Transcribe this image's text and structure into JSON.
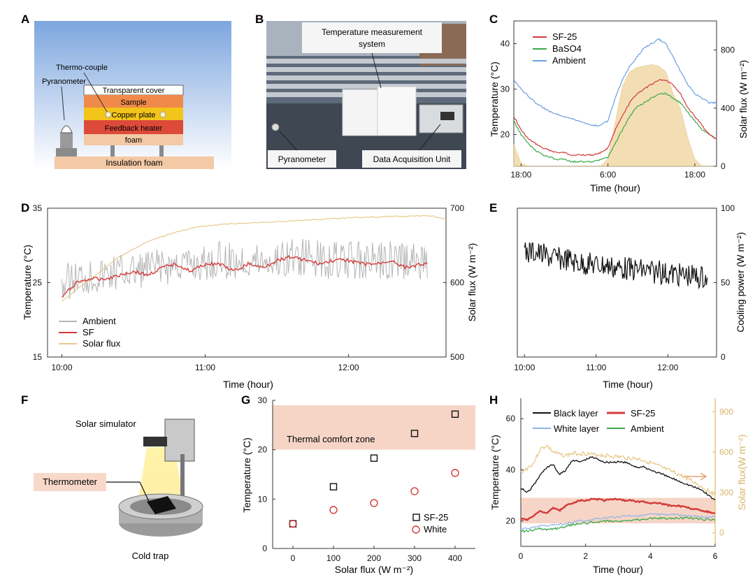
{
  "colors": {
    "sf": "#d43a3a",
    "baso4": "#3aa84a",
    "ambient": "#6b9fe0",
    "ambient_d": "#b5b5b5",
    "solar": "#e8c98a",
    "solar_fill": "#f2d9a8",
    "comfort": "#f6d5c7",
    "black": "#111111",
    "white_layer": "#8ab4e8"
  },
  "panels": {
    "A": {
      "letter": "A",
      "labels": {
        "thermocouple": "Thermo-couple",
        "pyranometer": "Pyranometer",
        "transparent_cover": "Transparent cover",
        "sample": "Sample",
        "copper_plate": "Copper plate",
        "feedback_heater": "Feedback heater",
        "foam": "foam",
        "insulation_foam": "Insulation foam"
      }
    },
    "B": {
      "letter": "B",
      "labels": {
        "temp_system_1": "Temperature measurement",
        "temp_system_2": "system",
        "pyranometer": "Pyranometer",
        "daq": "Data Acquisition Unit"
      }
    },
    "F": {
      "letter": "F",
      "labels": {
        "solar_simulator": "Solar simulator",
        "thermometer": "Thermometer",
        "cold_trap": "Cold trap"
      }
    }
  },
  "chart_data": [
    {
      "id": "C",
      "type": "line",
      "letter": "C",
      "xlabel": "Time (hour)",
      "ylabel": "Temperature (°C)",
      "y2label": "Solar flux (W m⁻²)",
      "xticks": [
        "18:00",
        "6:00",
        "18:00"
      ],
      "xtick_values": [
        0,
        12,
        24
      ],
      "xlim": [
        -1,
        27
      ],
      "ylim": [
        13,
        45
      ],
      "yticks": [
        20,
        30,
        40
      ],
      "y2lim": [
        0,
        1000
      ],
      "y2ticks": [
        0,
        400,
        800
      ],
      "legend": [
        "SF-25",
        "BaSO4",
        "Ambient"
      ],
      "series": [
        {
          "name": "SF-25",
          "x": [
            -1,
            0,
            1,
            2,
            3,
            4,
            5,
            6,
            7,
            8,
            9,
            10,
            11,
            12,
            13,
            14,
            15,
            16,
            17,
            18,
            19,
            20,
            21,
            22,
            23,
            24,
            25,
            26,
            27
          ],
          "values": [
            24,
            21,
            19,
            18,
            17,
            16.5,
            16,
            16,
            15.5,
            15.5,
            15.5,
            15.5,
            16,
            17,
            21,
            24,
            27,
            29,
            30,
            31,
            32,
            32,
            31,
            29,
            26,
            24,
            22,
            20,
            19
          ]
        },
        {
          "name": "BaSO4",
          "x": [
            -1,
            0,
            1,
            2,
            3,
            4,
            5,
            6,
            7,
            8,
            9,
            10,
            11,
            12,
            13,
            14,
            15,
            16,
            17,
            18,
            19,
            20,
            21,
            22,
            23,
            24,
            25,
            26,
            27
          ],
          "values": [
            23,
            20,
            18,
            16.5,
            15.5,
            15,
            14.5,
            14.5,
            14,
            14,
            14,
            14,
            14.5,
            15,
            18,
            21,
            24,
            26,
            27,
            28,
            29,
            29,
            28,
            27,
            25,
            23,
            21,
            20,
            19
          ]
        },
        {
          "name": "Ambient",
          "x": [
            -1,
            0,
            1,
            2,
            3,
            4,
            5,
            6,
            7,
            8,
            9,
            10,
            11,
            12,
            13,
            14,
            15,
            16,
            17,
            18,
            19,
            20,
            21,
            22,
            23,
            24,
            25,
            26,
            27
          ],
          "values": [
            32,
            30,
            28.5,
            27,
            26,
            25,
            24.5,
            24,
            23.5,
            23,
            22.5,
            22,
            22,
            23,
            28,
            32,
            35,
            37,
            39,
            40,
            41,
            40,
            37,
            34,
            31,
            29,
            28,
            27,
            27
          ]
        },
        {
          "name": "Solar flux",
          "x": [
            -1,
            0,
            1,
            2,
            3,
            4,
            5,
            6,
            7,
            8,
            9,
            10,
            11,
            12,
            13,
            14,
            15,
            16,
            17,
            18,
            19,
            20,
            21,
            22,
            23,
            24,
            25,
            26,
            27
          ],
          "values": [
            150,
            20,
            0,
            0,
            0,
            0,
            0,
            0,
            0,
            0,
            0,
            0,
            0,
            50,
            300,
            550,
            650,
            680,
            690,
            700,
            690,
            650,
            500,
            400,
            200,
            50,
            0,
            0,
            0
          ]
        }
      ]
    },
    {
      "id": "D",
      "type": "line",
      "letter": "D",
      "xlabel": "Time (hour)",
      "ylabel": "Temperature (°C)",
      "y2label": "Solar flux (W m⁻²)",
      "xticks": [
        "10:00",
        "11:00",
        "12:00"
      ],
      "xtick_values": [
        0,
        1,
        2
      ],
      "xlim": [
        -0.1,
        2.68
      ],
      "ylim": [
        15,
        35
      ],
      "yticks": [
        15,
        25,
        35
      ],
      "y2lim": [
        500,
        700
      ],
      "y2ticks": [
        500,
        600,
        700
      ],
      "legend": [
        "Ambient",
        "SF",
        "Solar flux"
      ],
      "series": [
        {
          "name": "Ambient",
          "x": [
            0,
            0.1,
            0.2,
            0.3,
            0.4,
            0.5,
            0.6,
            0.7,
            0.8,
            0.9,
            1.0,
            1.1,
            1.2,
            1.3,
            1.4,
            1.5,
            1.6,
            1.7,
            1.8,
            1.9,
            2.0,
            2.1,
            2.2,
            2.3,
            2.4,
            2.5,
            2.55
          ],
          "values": [
            25,
            25.5,
            26,
            26,
            26.5,
            26.5,
            27,
            27,
            27.5,
            27.5,
            27.5,
            28,
            28,
            28,
            28,
            28,
            28.5,
            28.5,
            28,
            28,
            28,
            28,
            28,
            28,
            28,
            28,
            28
          ]
        },
        {
          "name": "SF",
          "x": [
            0,
            0.1,
            0.2,
            0.3,
            0.4,
            0.5,
            0.6,
            0.7,
            0.8,
            0.9,
            1.0,
            1.1,
            1.2,
            1.3,
            1.4,
            1.5,
            1.6,
            1.7,
            1.8,
            1.9,
            2.0,
            2.1,
            2.2,
            2.3,
            2.4,
            2.5,
            2.55
          ],
          "values": [
            23,
            25,
            25.5,
            25.5,
            26,
            26.5,
            26,
            27,
            27.5,
            26.5,
            27.5,
            27.5,
            26.5,
            27.5,
            27,
            28,
            28.5,
            28,
            27.5,
            28,
            28,
            27.5,
            27.5,
            28,
            27,
            27.5,
            27.5
          ]
        },
        {
          "name": "Solar flux",
          "x": [
            0,
            0.1,
            0.2,
            0.3,
            0.4,
            0.5,
            0.6,
            0.7,
            0.8,
            0.9,
            1.0,
            1.1,
            1.2,
            1.3,
            1.4,
            1.5,
            1.6,
            1.7,
            1.8,
            1.9,
            2.0,
            2.1,
            2.2,
            2.3,
            2.4,
            2.5,
            2.6,
            2.68
          ],
          "values": [
            575,
            590,
            605,
            620,
            635,
            645,
            655,
            662,
            668,
            673,
            676,
            678,
            679,
            680,
            681,
            682,
            683,
            684,
            685,
            686,
            687,
            688,
            688,
            689,
            689,
            690,
            689,
            685
          ]
        }
      ]
    },
    {
      "id": "E",
      "type": "line",
      "letter": "E",
      "xlabel": "Time (hour)",
      "ylabel": "Cooling power (W m⁻²)",
      "xticks": [
        "10:00",
        "11:00",
        "12:00"
      ],
      "xtick_values": [
        0,
        1,
        2
      ],
      "xlim": [
        -0.1,
        2.68
      ],
      "ylim": [
        0,
        100
      ],
      "yticks": [
        0,
        50,
        100
      ],
      "series": [
        {
          "name": "Cooling power",
          "x": [
            0,
            0.1,
            0.2,
            0.3,
            0.4,
            0.5,
            0.6,
            0.7,
            0.8,
            0.9,
            1.0,
            1.1,
            1.2,
            1.3,
            1.4,
            1.5,
            1.6,
            1.7,
            1.8,
            1.9,
            2.0,
            2.1,
            2.2,
            2.3,
            2.4,
            2.5,
            2.55
          ],
          "values": [
            70,
            71,
            70,
            68,
            67,
            66,
            66,
            64,
            63,
            63,
            62,
            62,
            61,
            60,
            60,
            59,
            59,
            58,
            57,
            57,
            56,
            56,
            55,
            55,
            54,
            54,
            53
          ]
        }
      ]
    },
    {
      "id": "G",
      "type": "scatter",
      "letter": "G",
      "xlabel": "Solar flux (W m⁻²)",
      "ylabel": "Temperature (°C)",
      "xlim": [
        -50,
        450
      ],
      "xticks": [
        0,
        100,
        200,
        300,
        400
      ],
      "ylim": [
        0,
        30
      ],
      "yticks": [
        0,
        10,
        20,
        30
      ],
      "annotation": "Thermal comfort zone",
      "comfort_zone": [
        20,
        29
      ],
      "legend": [
        "SF-25",
        "White"
      ],
      "series": [
        {
          "name": "SF-25",
          "x": [
            0,
            100,
            200,
            300,
            400
          ],
          "values": [
            5,
            12.5,
            18.3,
            23.3,
            27.2
          ]
        },
        {
          "name": "White",
          "x": [
            0,
            100,
            200,
            300,
            400
          ],
          "values": [
            5,
            7.8,
            9.2,
            11.6,
            15.3
          ]
        }
      ]
    },
    {
      "id": "H",
      "type": "line",
      "letter": "H",
      "xlabel": "Time (hour)",
      "ylabel": "Temperature (°C)",
      "y2label": "Solar flux(W m⁻²)",
      "xlim": [
        0,
        6
      ],
      "xticks": [
        0,
        2,
        4,
        6
      ],
      "ylim": [
        10,
        68
      ],
      "yticks": [
        20,
        40,
        60
      ],
      "y2lim": [
        -100,
        1000
      ],
      "y2ticks": [
        0,
        300,
        600,
        900
      ],
      "comfort_zone": [
        19,
        29
      ],
      "legend": [
        "Black layer",
        "SF-25",
        "White layer",
        "Ambient"
      ],
      "series": [
        {
          "name": "Black layer",
          "x": [
            0,
            0.2,
            0.4,
            0.6,
            0.8,
            1.0,
            1.2,
            1.4,
            1.6,
            1.8,
            2.0,
            2.2,
            2.4,
            2.6,
            2.8,
            3.0,
            3.2,
            3.4,
            3.6,
            3.8,
            4.0,
            4.2,
            4.4,
            4.6,
            4.8,
            5.0,
            5.2,
            5.4,
            5.6,
            5.8,
            6.0
          ],
          "values": [
            33,
            31,
            34,
            38,
            41,
            42,
            38,
            40,
            44,
            43,
            44,
            45,
            44,
            43,
            43,
            43,
            43,
            42,
            41,
            41,
            40,
            39,
            38,
            37,
            36,
            35,
            34,
            33,
            32,
            30,
            28
          ]
        },
        {
          "name": "SF-25",
          "x": [
            0,
            0.2,
            0.4,
            0.6,
            0.8,
            1.0,
            1.2,
            1.4,
            1.6,
            1.8,
            2.0,
            2.2,
            2.4,
            2.6,
            2.8,
            3.0,
            3.2,
            3.4,
            3.6,
            3.8,
            4.0,
            4.2,
            4.4,
            4.6,
            4.8,
            5.0,
            5.2,
            5.4,
            5.6,
            5.8,
            6.0
          ],
          "values": [
            21,
            20.5,
            22,
            24,
            23,
            25,
            24,
            26,
            27,
            28,
            28,
            28.5,
            28.5,
            28,
            28.5,
            28.5,
            28,
            28,
            27.5,
            27.5,
            27,
            27,
            26.5,
            26,
            26,
            25.5,
            25,
            24.5,
            24,
            23.5,
            23
          ]
        },
        {
          "name": "White layer",
          "x": [
            0,
            0.2,
            0.4,
            0.6,
            0.8,
            1.0,
            1.2,
            1.4,
            1.6,
            1.8,
            2.0,
            2.2,
            2.4,
            2.6,
            2.8,
            3.0,
            3.2,
            3.4,
            3.6,
            3.8,
            4.0,
            4.2,
            4.4,
            4.6,
            4.8,
            5.0,
            5.2,
            5.4,
            5.6,
            5.8,
            6.0
          ],
          "values": [
            17,
            17,
            17.5,
            18,
            18,
            18.5,
            18.5,
            19,
            19.5,
            20,
            20,
            20.5,
            21,
            21,
            21.5,
            21.5,
            22,
            22,
            22,
            22,
            22.5,
            22.5,
            22.5,
            22.5,
            22.5,
            22,
            22,
            22,
            21.5,
            21.5,
            21.5
          ]
        },
        {
          "name": "Ambient",
          "x": [
            0,
            0.2,
            0.4,
            0.6,
            0.8,
            1.0,
            1.2,
            1.4,
            1.6,
            1.8,
            2.0,
            2.2,
            2.4,
            2.6,
            2.8,
            3.0,
            3.2,
            3.4,
            3.6,
            3.8,
            4.0,
            4.2,
            4.4,
            4.6,
            4.8,
            5.0,
            5.2,
            5.4,
            5.6,
            5.8,
            6.0
          ],
          "values": [
            16,
            16,
            16.5,
            17,
            16.5,
            17,
            17,
            18,
            18.5,
            19,
            19,
            19.5,
            19.5,
            20,
            20,
            20,
            20,
            20,
            20.5,
            20.5,
            21,
            21,
            21,
            21,
            21,
            21,
            21,
            21,
            20.5,
            20.5,
            20.5
          ]
        },
        {
          "name": "Solar flux",
          "x": [
            0,
            0.2,
            0.4,
            0.6,
            0.8,
            1.0,
            1.2,
            1.4,
            1.6,
            1.8,
            2.0,
            2.2,
            2.4,
            2.6,
            2.8,
            3.0,
            3.2,
            3.4,
            3.6,
            3.8,
            4.0,
            4.2,
            4.4,
            4.6,
            4.8,
            5.0,
            5.2,
            5.4,
            5.6,
            5.8,
            6.0
          ],
          "values": [
            450,
            480,
            520,
            620,
            650,
            600,
            580,
            575,
            590,
            590,
            590,
            580,
            580,
            575,
            570,
            565,
            560,
            555,
            550,
            540,
            520,
            500,
            480,
            460,
            440,
            420,
            400,
            370,
            340,
            310,
            290
          ]
        }
      ]
    }
  ]
}
